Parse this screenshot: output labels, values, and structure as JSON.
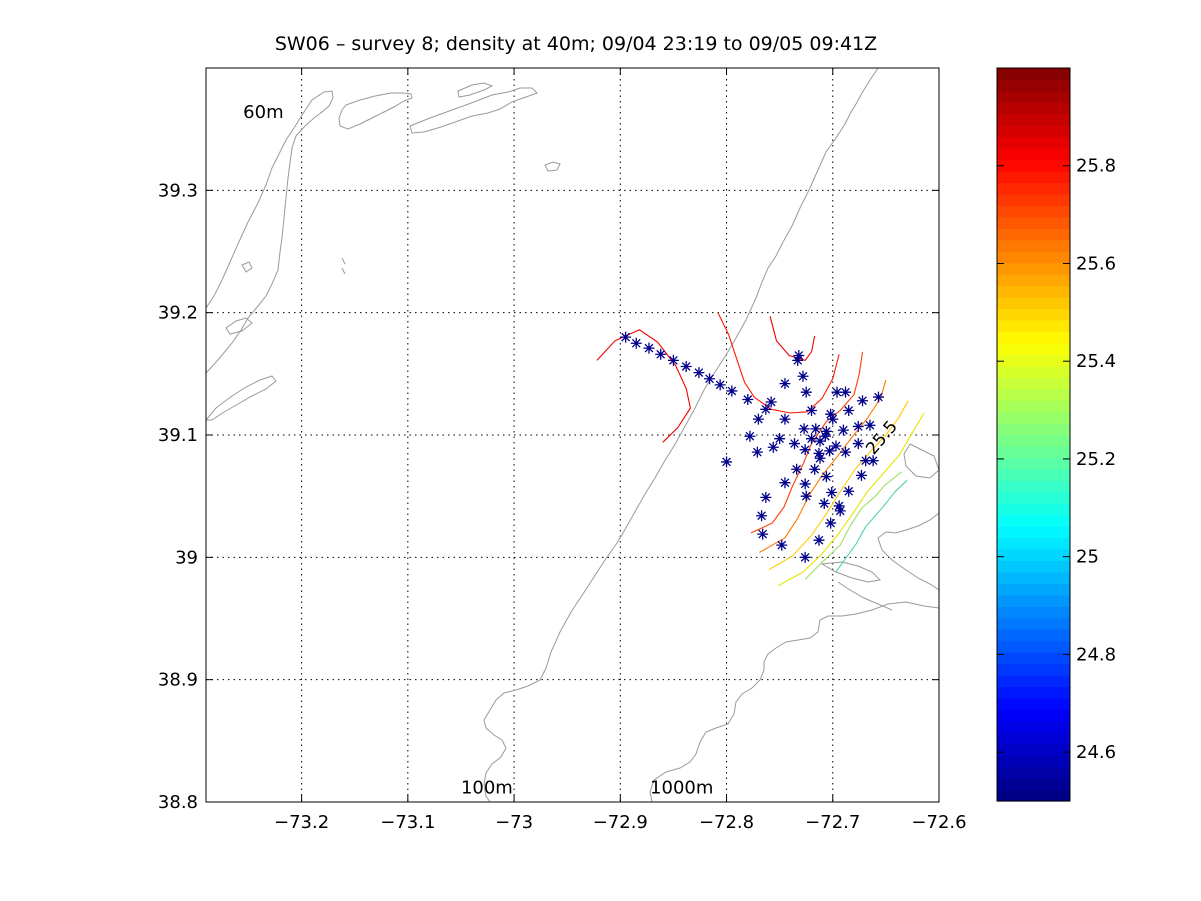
{
  "chart_data": {
    "type": "scatter",
    "title": "SW06 – survey 8; density at 40m; 09/04 23:19 to 09/05 09:41Z",
    "xlim": [
      -73.29,
      -72.6
    ],
    "ylim": [
      38.8,
      39.4
    ],
    "x_ticks": [
      -73.2,
      -73.1,
      -73,
      -72.9,
      -72.8,
      -72.7,
      -72.6
    ],
    "x_tick_labels": [
      "−73.2",
      "−73.1",
      "−73",
      "−72.9",
      "−72.8",
      "−72.7",
      "−72.6"
    ],
    "y_ticks": [
      38.8,
      38.9,
      39,
      39.1,
      39.2,
      39.3
    ],
    "y_tick_labels": [
      "38.8",
      "38.9",
      "39",
      "39.1",
      "39.2",
      "39.3"
    ],
    "grid": true,
    "station_color": "#00008b",
    "station_marker": "asterisk",
    "stations": [
      {
        "x": -72.895,
        "y": 39.18
      },
      {
        "x": -72.885,
        "y": 39.175
      },
      {
        "x": -72.873,
        "y": 39.171
      },
      {
        "x": -72.862,
        "y": 39.166
      },
      {
        "x": -72.85,
        "y": 39.161
      },
      {
        "x": -72.838,
        "y": 39.156
      },
      {
        "x": -72.826,
        "y": 39.151
      },
      {
        "x": -72.816,
        "y": 39.146
      },
      {
        "x": -72.806,
        "y": 39.141
      },
      {
        "x": -72.795,
        "y": 39.136
      },
      {
        "x": -72.78,
        "y": 39.129
      },
      {
        "x": -72.763,
        "y": 39.121
      },
      {
        "x": -72.758,
        "y": 39.127
      },
      {
        "x": -72.745,
        "y": 39.142
      },
      {
        "x": -72.732,
        "y": 39.165
      },
      {
        "x": -72.733,
        "y": 39.161
      },
      {
        "x": -72.728,
        "y": 39.148
      },
      {
        "x": -72.725,
        "y": 39.135
      },
      {
        "x": -72.77,
        "y": 39.113
      },
      {
        "x": -72.745,
        "y": 39.113
      },
      {
        "x": -72.72,
        "y": 39.12
      },
      {
        "x": -72.696,
        "y": 39.135
      },
      {
        "x": -72.688,
        "y": 39.135
      },
      {
        "x": -72.672,
        "y": 39.128
      },
      {
        "x": -72.657,
        "y": 39.131
      },
      {
        "x": -72.702,
        "y": 39.117
      },
      {
        "x": -72.685,
        "y": 39.12
      },
      {
        "x": -72.7,
        "y": 39.113
      },
      {
        "x": -72.727,
        "y": 39.105
      },
      {
        "x": -72.716,
        "y": 39.105
      },
      {
        "x": -72.706,
        "y": 39.103
      },
      {
        "x": -72.69,
        "y": 39.104
      },
      {
        "x": -72.676,
        "y": 39.107
      },
      {
        "x": -72.665,
        "y": 39.108
      },
      {
        "x": -72.778,
        "y": 39.099
      },
      {
        "x": -72.75,
        "y": 39.097
      },
      {
        "x": -72.736,
        "y": 39.093
      },
      {
        "x": -72.72,
        "y": 39.097
      },
      {
        "x": -72.712,
        "y": 39.095
      },
      {
        "x": -72.707,
        "y": 39.099
      },
      {
        "x": -72.697,
        "y": 39.091
      },
      {
        "x": -72.688,
        "y": 39.086
      },
      {
        "x": -72.676,
        "y": 39.093
      },
      {
        "x": -72.669,
        "y": 39.079
      },
      {
        "x": -72.662,
        "y": 39.079
      },
      {
        "x": -72.771,
        "y": 39.086
      },
      {
        "x": -72.756,
        "y": 39.09
      },
      {
        "x": -72.726,
        "y": 39.088
      },
      {
        "x": -72.713,
        "y": 39.085
      },
      {
        "x": -72.712,
        "y": 39.081
      },
      {
        "x": -72.703,
        "y": 39.087
      },
      {
        "x": -72.8,
        "y": 39.078
      },
      {
        "x": -72.734,
        "y": 39.072
      },
      {
        "x": -72.717,
        "y": 39.072
      },
      {
        "x": -72.706,
        "y": 39.066
      },
      {
        "x": -72.673,
        "y": 39.067
      },
      {
        "x": -72.745,
        "y": 39.061
      },
      {
        "x": -72.726,
        "y": 39.06
      },
      {
        "x": -72.701,
        "y": 39.053
      },
      {
        "x": -72.685,
        "y": 39.054
      },
      {
        "x": -72.763,
        "y": 39.049
      },
      {
        "x": -72.725,
        "y": 39.05
      },
      {
        "x": -72.708,
        "y": 39.044
      },
      {
        "x": -72.694,
        "y": 39.042
      },
      {
        "x": -72.693,
        "y": 39.038
      },
      {
        "x": -72.767,
        "y": 39.034
      },
      {
        "x": -72.702,
        "y": 39.028
      },
      {
        "x": -72.766,
        "y": 39.019
      },
      {
        "x": -72.713,
        "y": 39.014
      },
      {
        "x": -72.748,
        "y": 39.01
      },
      {
        "x": -72.726,
        "y": 39.0
      }
    ],
    "contours": [
      {
        "level": 25.8,
        "color": "#f00000",
        "points": [
          [
            -72.922,
            39.161
          ],
          [
            -72.905,
            39.177
          ],
          [
            -72.882,
            39.186
          ],
          [
            -72.865,
            39.176
          ],
          [
            -72.848,
            39.157
          ],
          [
            -72.838,
            39.138
          ],
          [
            -72.834,
            39.122
          ],
          [
            -72.846,
            39.106
          ],
          [
            -72.86,
            39.094
          ]
        ]
      },
      {
        "level": 25.8,
        "color": "#ff1a00",
        "points": [
          [
            -72.808,
            39.2
          ],
          [
            -72.798,
            39.182
          ],
          [
            -72.79,
            39.161
          ],
          [
            -72.783,
            39.143
          ],
          [
            -72.774,
            39.131
          ],
          [
            -72.758,
            39.121
          ],
          [
            -72.74,
            39.118
          ],
          [
            -72.724,
            39.119
          ],
          [
            -72.71,
            39.13
          ],
          [
            -72.7,
            39.146
          ],
          [
            -72.694,
            39.166
          ]
        ]
      },
      {
        "level": 25.8,
        "color": "#f00000",
        "points": [
          [
            -72.759,
            39.197
          ],
          [
            -72.753,
            39.177
          ],
          [
            -72.741,
            39.165
          ],
          [
            -72.726,
            39.161
          ],
          [
            -72.72,
            39.168
          ],
          [
            -72.717,
            39.181
          ]
        ]
      },
      {
        "level": 25.7,
        "color": "#ff3c00",
        "points": [
          [
            -72.777,
            39.02
          ],
          [
            -72.757,
            39.028
          ],
          [
            -72.746,
            39.041
          ],
          [
            -72.738,
            39.058
          ],
          [
            -72.728,
            39.076
          ],
          [
            -72.72,
            39.093
          ],
          [
            -72.706,
            39.111
          ],
          [
            -72.693,
            39.12
          ],
          [
            -72.68,
            39.133
          ],
          [
            -72.675,
            39.15
          ],
          [
            -72.672,
            39.168
          ]
        ]
      },
      {
        "level": 25.6,
        "color": "#ff7a00",
        "points": [
          [
            -72.769,
            39.004
          ],
          [
            -72.745,
            39.016
          ],
          [
            -72.733,
            39.032
          ],
          [
            -72.722,
            39.051
          ],
          [
            -72.71,
            39.067
          ],
          [
            -72.697,
            39.081
          ],
          [
            -72.682,
            39.098
          ],
          [
            -72.668,
            39.113
          ],
          [
            -72.655,
            39.13
          ],
          [
            -72.65,
            39.145
          ]
        ]
      },
      {
        "level": 25.5,
        "color": "#ffcc00",
        "points": [
          [
            -72.76,
            38.99
          ],
          [
            -72.738,
            39.001
          ],
          [
            -72.72,
            39.018
          ],
          [
            -72.705,
            39.037
          ],
          [
            -72.692,
            39.055
          ],
          [
            -72.679,
            39.072
          ],
          [
            -72.665,
            39.086
          ],
          [
            -72.65,
            39.1
          ],
          [
            -72.638,
            39.114
          ],
          [
            -72.629,
            39.128
          ]
        ]
      },
      {
        "level": 25.4,
        "color": "#e6e600",
        "points": [
          [
            -72.751,
            38.977
          ],
          [
            -72.728,
            38.988
          ],
          [
            -72.71,
            39.003
          ],
          [
            -72.694,
            39.02
          ],
          [
            -72.681,
            39.036
          ],
          [
            -72.668,
            39.053
          ],
          [
            -72.653,
            39.068
          ],
          [
            -72.637,
            39.084
          ],
          [
            -72.627,
            39.099
          ],
          [
            -72.614,
            39.118
          ]
        ]
      },
      {
        "level": 25.3,
        "color": "#9de06b",
        "points": [
          [
            -72.726,
            38.982
          ],
          [
            -72.71,
            38.996
          ],
          [
            -72.693,
            39.01
          ],
          [
            -72.684,
            39.025
          ],
          [
            -72.673,
            39.04
          ],
          [
            -72.66,
            39.05
          ],
          [
            -72.651,
            39.059
          ],
          [
            -72.635,
            39.07
          ]
        ]
      },
      {
        "level": 25.2,
        "color": "#55d0b0",
        "points": [
          [
            -72.697,
            38.988
          ],
          [
            -72.688,
            38.999
          ],
          [
            -72.678,
            39.011
          ],
          [
            -72.669,
            39.025
          ],
          [
            -72.652,
            39.042
          ],
          [
            -72.641,
            39.054
          ],
          [
            -72.63,
            39.063
          ]
        ]
      }
    ],
    "contour_label": {
      "text": "25.5",
      "x": -72.65,
      "y": 39.095,
      "angle": -50
    },
    "bathymetry_labels": [
      {
        "text": "60m",
        "x": -73.255,
        "y": 39.364
      },
      {
        "text": "100m",
        "x": -73.05,
        "y": 38.812
      },
      {
        "text": "1000m",
        "x": -72.872,
        "y": 38.812
      }
    ],
    "colorbar": {
      "min": 24.5,
      "max": 26.0,
      "colormap": "jet",
      "ticks": [
        24.6,
        24.8,
        25,
        25.2,
        25.4,
        25.6,
        25.8
      ],
      "tick_labels": [
        "24.6",
        "24.8",
        "25",
        "25.2",
        "25.4",
        "25.6",
        "25.8"
      ]
    }
  }
}
